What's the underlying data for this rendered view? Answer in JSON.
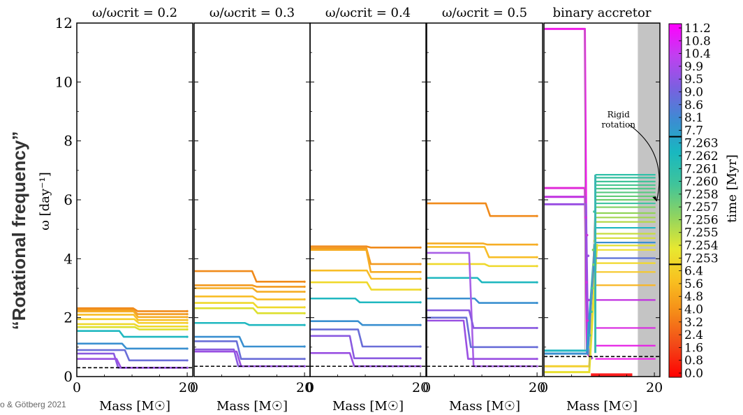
{
  "figure": {
    "side_title": "“Rotational frequency”",
    "credit": "o & Götberg 2021"
  },
  "chart_data": {
    "type": "line",
    "ylabel": "ω [day⁻¹]",
    "xlabel": "Mass [M☉]",
    "ylim": [
      0,
      12
    ],
    "xlim": [
      0,
      21
    ],
    "yticks": [
      "0",
      "2",
      "4",
      "6",
      "8",
      "10",
      "12"
    ],
    "panels": [
      {
        "title": "ω/ωcrit = 0.2",
        "xticks": [
          "0",
          "20"
        ],
        "dashed_level": 0.3,
        "series": [
          {
            "color": "#f08a1a",
            "start": 2.32,
            "end": 2.22,
            "step_at": 10.5
          },
          {
            "color": "#f39a20",
            "start": 2.26,
            "end": 2.12,
            "step_at": 10.5
          },
          {
            "color": "#f6ad25",
            "start": 2.21,
            "end": 2.02,
            "step_at": 10.6
          },
          {
            "color": "#f8be27",
            "start": 2.1,
            "end": 1.92,
            "step_at": 10.6
          },
          {
            "color": "#f6cf2a",
            "start": 1.95,
            "end": 1.82,
            "step_at": 10.7
          },
          {
            "color": "#efd92c",
            "start": 1.78,
            "end": 1.7,
            "step_at": 10.7
          },
          {
            "color": "#dde02f",
            "start": 1.68,
            "end": 1.6,
            "step_at": 10.8
          },
          {
            "color": "#20b8c0",
            "start": 1.55,
            "end": 1.35,
            "step_at": 8.0
          },
          {
            "color": "#3a90d0",
            "start": 1.12,
            "end": 0.95,
            "step_at": 8.5
          },
          {
            "color": "#6a6ed8",
            "start": 0.9,
            "end": 0.55,
            "step_at": 9.0
          },
          {
            "color": "#8a5ae0",
            "start": 0.78,
            "end": 0.3,
            "step_at": 7.0
          },
          {
            "color": "#9a50e2",
            "start": 0.6,
            "end": 0.3,
            "step_at": 7.5
          }
        ]
      },
      {
        "title": "ω/ωcrit = 0.3",
        "xticks": [
          "0",
          "20"
        ],
        "dashed_level": 0.35,
        "series": [
          {
            "color": "#f08a1a",
            "start": 3.58,
            "end": 3.22,
            "step_at": 10.8
          },
          {
            "color": "#f39a20",
            "start": 3.1,
            "end": 3.05,
            "step_at": 10.8
          },
          {
            "color": "#f6ad25",
            "start": 3.0,
            "end": 2.88,
            "step_at": 10.9
          },
          {
            "color": "#f8be27",
            "start": 2.72,
            "end": 2.62,
            "step_at": 10.9
          },
          {
            "color": "#efd92c",
            "start": 2.5,
            "end": 2.35,
            "step_at": 11.0
          },
          {
            "color": "#dde02f",
            "start": 2.32,
            "end": 2.15,
            "step_at": 11.0
          },
          {
            "color": "#20b8c0",
            "start": 1.82,
            "end": 1.75,
            "step_at": 9.5
          },
          {
            "color": "#3a90d0",
            "start": 1.35,
            "end": 1.02,
            "step_at": 8.5
          },
          {
            "color": "#6a6ed8",
            "start": 1.2,
            "end": 0.6,
            "step_at": 8.0
          },
          {
            "color": "#8a5ae0",
            "start": 0.92,
            "end": 0.35,
            "step_at": 7.5
          },
          {
            "color": "#9a50e2",
            "start": 0.85,
            "end": 0.35,
            "step_at": 8.0
          }
        ]
      },
      {
        "title": "ω/ωcrit = 0.4",
        "xticks": [
          "0",
          "20"
        ],
        "dashed_level": 0.35,
        "series": [
          {
            "color": "#f08a1a",
            "start": 4.42,
            "end": 4.38,
            "step_at": 10.5
          },
          {
            "color": "#f39a20",
            "start": 4.36,
            "end": 3.82,
            "step_at": 10.5
          },
          {
            "color": "#f6ad25",
            "start": 4.3,
            "end": 3.55,
            "step_at": 10.5
          },
          {
            "color": "#f8be27",
            "start": 3.6,
            "end": 3.32,
            "step_at": 10.6
          },
          {
            "color": "#efd92c",
            "start": 3.2,
            "end": 2.95,
            "step_at": 10.6
          },
          {
            "color": "#20b8c0",
            "start": 2.65,
            "end": 2.52,
            "step_at": 8.5
          },
          {
            "color": "#3a90d0",
            "start": 1.88,
            "end": 1.75,
            "step_at": 9.0
          },
          {
            "color": "#6a6ed8",
            "start": 1.6,
            "end": 1.02,
            "step_at": 9.0
          },
          {
            "color": "#8a5ae0",
            "start": 1.38,
            "end": 0.62,
            "step_at": 7.5
          },
          {
            "color": "#9a50e2",
            "start": 0.8,
            "end": 0.35,
            "step_at": 7.5
          }
        ]
      },
      {
        "title": "ω/ωcrit = 0.5",
        "xticks": [
          "0",
          "20"
        ],
        "dashed_level": 0.35,
        "series": [
          {
            "color": "#f08a1a",
            "start": 5.88,
            "end": 5.45,
            "step_at": 11.0
          },
          {
            "color": "#f6ad25",
            "start": 4.52,
            "end": 4.48,
            "step_at": 10.5
          },
          {
            "color": "#f8be27",
            "start": 4.4,
            "end": 4.05,
            "step_at": 10.8
          },
          {
            "color": "#efd92c",
            "start": 3.82,
            "end": 3.75,
            "step_at": 10.8
          },
          {
            "color": "#20b8c0",
            "start": 3.35,
            "end": 3.2,
            "step_at": 9.5
          },
          {
            "color": "#3a90d0",
            "start": 2.65,
            "end": 2.5,
            "step_at": 9.0
          },
          {
            "color": "#a860e6",
            "start": 4.2,
            "end": 0.35,
            "step_at": 8.0
          },
          {
            "color": "#8a5ae0",
            "start": 2.25,
            "end": 1.65,
            "step_at": 8.0
          },
          {
            "color": "#6a6ed8",
            "start": 2.0,
            "end": 1.0,
            "step_at": 7.5
          },
          {
            "color": "#9a50e2",
            "start": 1.9,
            "end": 0.6,
            "step_at": 7.0
          }
        ]
      },
      {
        "title": "binary accretor",
        "xticks": [
          "0",
          "20"
        ],
        "dashed_level": 0.68,
        "shaded_from": 17,
        "annotation": [
          "Rigid",
          "rotation"
        ],
        "series": [
          {
            "color": "#ee1ee8",
            "start": 11.8,
            "end": 11.8,
            "step_at": 0,
            "drop_at": 7.4
          },
          {
            "color": "#e02ad8",
            "start": 6.4,
            "end": 6.4,
            "step_at": 0,
            "drop_at": 7.4
          },
          {
            "color": "#c030e0",
            "start": 6.1,
            "end": 6.1,
            "step_at": 0,
            "drop_at": 7.5
          },
          {
            "color": "#9a50e2",
            "start": 5.85,
            "end": 5.85,
            "step_at": 0,
            "drop_at": 7.6
          },
          {
            "color": "#20b8c0",
            "start": 0.88,
            "end": 0.88,
            "step_at": 0,
            "rise_at": 7.8
          },
          {
            "color": "#3a90d0",
            "start": 0.78,
            "end": 0.78,
            "step_at": 0,
            "rise_at": 7.9
          },
          {
            "color": "#f2d030",
            "start": 0.35,
            "end": 0.35,
            "step_at": 0,
            "rise_at": 8.2
          },
          {
            "color": "#e8e030",
            "start": 0.15,
            "end": 0.15,
            "step_at": 0,
            "rise_at": 8.2
          },
          {
            "color": "#ff2020",
            "start": 0.05,
            "end": 0.05,
            "step_at": 0,
            "range": [
              8.5,
              16.0
            ]
          }
        ],
        "right_levels": [
          {
            "y": 6.85,
            "color": "#30c0a8"
          },
          {
            "y": 6.75,
            "color": "#38c0a0"
          },
          {
            "y": 6.62,
            "color": "#40c498"
          },
          {
            "y": 6.5,
            "color": "#48c690"
          },
          {
            "y": 6.38,
            "color": "#50c888"
          },
          {
            "y": 6.25,
            "color": "#58ca80"
          },
          {
            "y": 6.12,
            "color": "#62cc78"
          },
          {
            "y": 6.0,
            "color": "#70cf6e"
          },
          {
            "y": 5.88,
            "color": "#40c4a0"
          },
          {
            "y": 5.75,
            "color": "#80d260"
          },
          {
            "y": 5.55,
            "color": "#90d458"
          },
          {
            "y": 5.4,
            "color": "#a2d650"
          },
          {
            "y": 5.25,
            "color": "#b4d848"
          },
          {
            "y": 5.05,
            "color": "#20b8c0"
          },
          {
            "y": 4.85,
            "color": "#c6dc40"
          },
          {
            "y": 4.7,
            "color": "#d6de38"
          },
          {
            "y": 4.55,
            "color": "#3a90d0"
          },
          {
            "y": 4.45,
            "color": "#e2e030"
          },
          {
            "y": 4.3,
            "color": "#eede2c"
          },
          {
            "y": 4.02,
            "color": "#5a70d8"
          },
          {
            "y": 3.85,
            "color": "#f2d82a"
          },
          {
            "y": 3.55,
            "color": "#f6c828"
          },
          {
            "y": 3.1,
            "color": "#f8b624"
          },
          {
            "y": 2.6,
            "color": "#c030e0"
          },
          {
            "y": 1.65,
            "color": "#d828e0"
          },
          {
            "y": 1.05,
            "color": "#e622e6"
          },
          {
            "y": 0.6,
            "color": "#f01eec"
          }
        ]
      }
    ],
    "colorbar": {
      "label": "time [Myr]",
      "ticks": [
        "11.2",
        "10.8",
        "10.4",
        "9.9",
        "9.5",
        "9.0",
        "8.6",
        "8.1",
        "7.7",
        "7.263",
        "7.262",
        "7.261",
        "7.260",
        "7.258",
        "7.257",
        "7.256",
        "7.255",
        "7.254",
        "7.253",
        "6.4",
        "5.6",
        "4.8",
        "4.0",
        "3.2",
        "2.4",
        "1.6",
        "0.8",
        "0.0"
      ],
      "gradient": [
        "#ff00ff",
        "#c040f0",
        "#7a60e0",
        "#3c8cd2",
        "#18b8c0",
        "#40c49a",
        "#90d460",
        "#e8e830",
        "#f8c020",
        "#f58a18",
        "#f24818",
        "#ff0000"
      ]
    }
  }
}
